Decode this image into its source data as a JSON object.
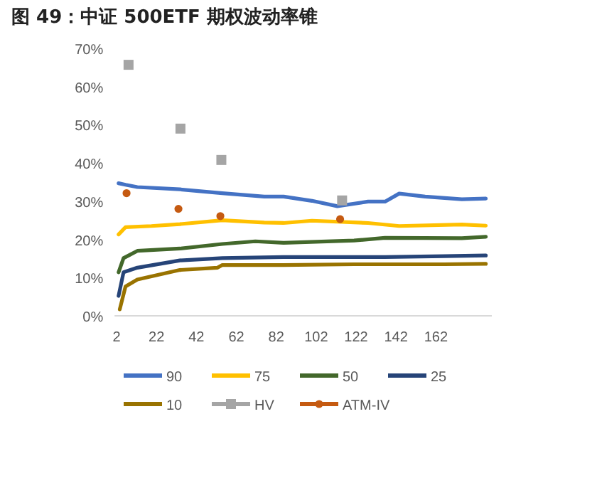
{
  "chart_data": {
    "type": "line",
    "title": "图 49：中证 500ETF 期权波动率锥",
    "xlim": [
      1,
      190
    ],
    "xticks": [
      2,
      22,
      42,
      62,
      82,
      102,
      122,
      142,
      162
    ],
    "ylim": [
      0,
      70
    ],
    "yticks": [
      {
        "value": 0,
        "label": "0%"
      },
      {
        "value": 10,
        "label": "10%"
      },
      {
        "value": 20,
        "label": "20%"
      },
      {
        "value": 30,
        "label": "30%"
      },
      {
        "value": 40,
        "label": "40%"
      },
      {
        "value": 50,
        "label": "50%"
      },
      {
        "value": 60,
        "label": "60%"
      },
      {
        "value": 70,
        "label": "70%"
      }
    ],
    "grid": false,
    "legend": "bottom",
    "series": [
      {
        "name": "90",
        "color": "#4472c4",
        "x": [
          3,
          6.5,
          12.4,
          33.7,
          55,
          76,
          85.7,
          99.9,
          112.6,
          128,
          136.5,
          143.6,
          156.6,
          175,
          187
        ],
        "values": [
          34.7,
          34.3,
          33.7,
          33.1,
          32.1,
          31.2,
          31.2,
          30.1,
          28.7,
          29.9,
          29.9,
          32,
          31.2,
          30.5,
          30.7
        ]
      },
      {
        "name": "75",
        "color": "#ffc000",
        "x": [
          3,
          6.5,
          19.5,
          33.7,
          55,
          76,
          85.7,
          99.9,
          128,
          143.6,
          175,
          187
        ],
        "values": [
          21.3,
          23.2,
          23.5,
          24,
          25,
          24.4,
          24.3,
          24.9,
          24.3,
          23.5,
          23.9,
          23.6
        ]
      },
      {
        "name": "50",
        "color": "#43682b",
        "x": [
          3,
          5.5,
          12.4,
          33.7,
          55,
          71.5,
          85.7,
          121,
          136.5,
          175,
          187
        ],
        "values": [
          11.4,
          15.1,
          17,
          17.6,
          18.8,
          19.5,
          19.1,
          19.7,
          20.4,
          20.3,
          20.7
        ]
      },
      {
        "name": "25",
        "color": "#264478",
        "x": [
          3,
          5.5,
          12.4,
          33.7,
          55,
          85.5,
          121,
          136.5,
          166,
          187
        ],
        "values": [
          5.2,
          11.4,
          12.6,
          14.5,
          15.1,
          15.4,
          15.4,
          15.4,
          15.6,
          15.8
        ]
      },
      {
        "name": "10",
        "color": "#997300",
        "x": [
          3.6,
          6.5,
          12.4,
          33.7,
          52.6,
          55,
          85.5,
          121,
          166,
          187
        ],
        "values": [
          1.7,
          7.7,
          9.5,
          12,
          12.6,
          13.3,
          13.3,
          13.5,
          13.5,
          13.6
        ]
      },
      {
        "name": "HV",
        "type": "scatter",
        "marker": "square",
        "color": "#a5a5a5",
        "x": [
          8,
          34,
          54.5,
          115
        ],
        "values": [
          65.7,
          49,
          40.8,
          30.2
        ]
      },
      {
        "name": "ATM-IV",
        "type": "scatter",
        "marker": "circle",
        "color": "#c55a11",
        "x": [
          7,
          33,
          54,
          114
        ],
        "values": [
          32.1,
          28,
          26.1,
          25.3
        ]
      }
    ]
  }
}
